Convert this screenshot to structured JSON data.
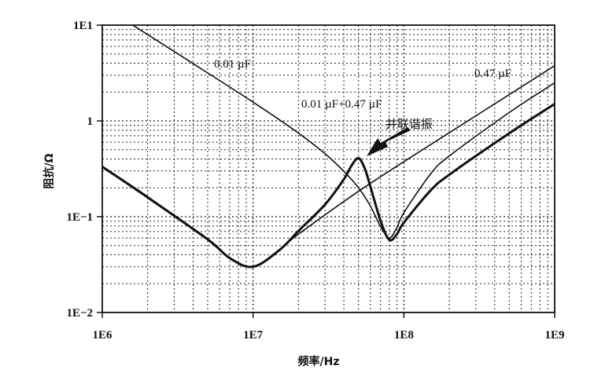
{
  "chart_data": {
    "type": "line",
    "xlabel": "频率/Hz",
    "ylabel": "阻抗/Ω",
    "x_scale": "log",
    "y_scale": "log",
    "xlim": [
      1000000,
      1000000000
    ],
    "ylim": [
      0.01,
      10
    ],
    "x_ticks": [
      {
        "value": 1000000,
        "label": "1E6"
      },
      {
        "value": 10000000,
        "label": "1E7"
      },
      {
        "value": 100000000,
        "label": "1E8"
      },
      {
        "value": 1000000000,
        "label": "1E9"
      }
    ],
    "y_ticks": [
      {
        "value": 0.01,
        "label": "1E−2"
      },
      {
        "value": 0.1,
        "label": "1E−1"
      },
      {
        "value": 1,
        "label": "1"
      },
      {
        "value": 10,
        "label": "1E1"
      }
    ],
    "grid": true,
    "series": [
      {
        "name": "0.01 µF",
        "weight": "thin",
        "x": [
          1500000,
          2000000,
          5000000,
          10000000,
          20000000,
          30000000,
          40000000,
          50000000,
          60000000,
          70000000,
          80000000,
          90000000,
          100000000,
          150000000,
          200000000,
          500000000,
          1000000000
        ],
        "y": [
          10.6,
          7.96,
          3.17,
          1.57,
          0.746,
          0.455,
          0.298,
          0.201,
          0.129,
          0.079,
          0.06,
          0.077,
          0.11,
          0.278,
          0.43,
          1.225,
          2.5
        ]
      },
      {
        "name": "0.47 µF",
        "weight": "thin",
        "x": [
          1000000,
          2000000,
          5000000,
          7000000,
          10000000,
          15000000,
          20000000,
          50000000,
          100000000,
          200000000,
          500000000,
          1000000000
        ],
        "y": [
          0.335,
          0.162,
          0.0573,
          0.037,
          0.0302,
          0.0455,
          0.0657,
          0.184,
          0.375,
          0.753,
          1.884,
          3.77
        ]
      },
      {
        "name": "0.01 µF+0.47 µF",
        "weight": "thick",
        "x": [
          1000000,
          2000000,
          5000000,
          7000000,
          10000000,
          15000000,
          20000000,
          30000000,
          40000000,
          45000000,
          50000000,
          55000000,
          60000000,
          70000000,
          80000000,
          90000000,
          100000000,
          150000000,
          200000000,
          500000000,
          1000000000
        ],
        "y": [
          0.332,
          0.159,
          0.058,
          0.037,
          0.03,
          0.045,
          0.071,
          0.134,
          0.246,
          0.342,
          0.409,
          0.32,
          0.206,
          0.091,
          0.0575,
          0.0658,
          0.0868,
          0.187,
          0.274,
          0.743,
          1.503
        ]
      }
    ],
    "annotations": [
      {
        "text": "并联谐振",
        "arrow_to": {
          "x": 50000000,
          "y": 0.41
        }
      }
    ],
    "series_labels": [
      "0.01 µF",
      "0.47 µF",
      "0.01 µF+0.47 µF"
    ]
  }
}
